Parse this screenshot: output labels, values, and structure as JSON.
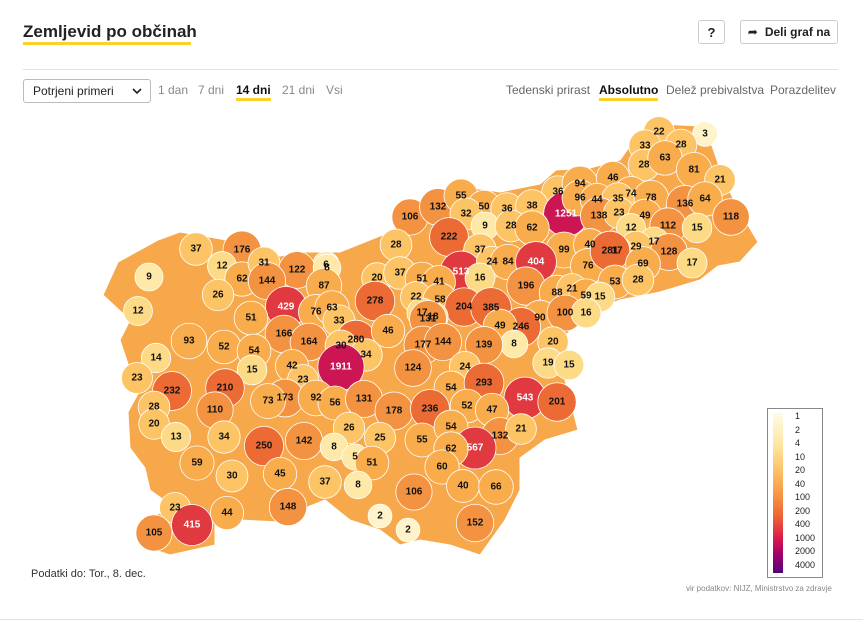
{
  "header": {
    "title": "Zemljevid po občinah",
    "help_label": "?",
    "share_label": "Deli graf na"
  },
  "controls": {
    "measure_select": "Potrjeni primeri",
    "ranges": [
      "1 dan",
      "7 dni",
      "14 dni",
      "21 dni",
      "Vsi"
    ],
    "active_range": "14 dni",
    "modes": [
      "Tedenski prirast",
      "Absolutno",
      "Delež prebivalstva",
      "Porazdelitev"
    ],
    "active_mode": "Absolutno"
  },
  "legend": {
    "stops": [
      "1",
      "2",
      "4",
      "10",
      "20",
      "40",
      "100",
      "200",
      "400",
      "1000",
      "2000",
      "4000"
    ]
  },
  "map": {
    "municipality_values": [
      22,
      3,
      33,
      28,
      28,
      63,
      81,
      21,
      36,
      94,
      46,
      74,
      78,
      136,
      64,
      118,
      106,
      132,
      55,
      50,
      36,
      38,
      1251,
      96,
      44,
      35,
      138,
      23,
      49,
      32,
      9,
      28,
      62,
      12,
      222,
      37,
      99,
      40,
      112,
      17,
      15,
      29,
      17,
      128,
      37,
      176,
      28,
      6,
      513,
      24,
      84,
      404,
      76,
      281,
      69,
      17,
      12,
      62,
      31,
      122,
      8,
      20,
      37,
      51,
      41,
      16,
      196,
      88,
      21,
      59,
      53,
      28,
      9,
      144,
      87,
      278,
      22,
      58,
      204,
      385,
      15,
      26,
      429,
      76,
      63,
      17,
      18,
      90,
      100,
      16,
      12,
      51,
      33,
      246,
      166,
      164,
      280,
      46,
      131,
      49,
      8,
      93,
      52,
      54,
      30,
      34,
      177,
      144,
      139,
      20,
      14,
      42,
      1911,
      124,
      24,
      19,
      15,
      23,
      15,
      23,
      54,
      293,
      543,
      201,
      232,
      210,
      173,
      92,
      56,
      131,
      178,
      236,
      52,
      47,
      28,
      73,
      110,
      20,
      13,
      34,
      26,
      25,
      55,
      54,
      132,
      21,
      250,
      142,
      8,
      5,
      567,
      62,
      59,
      51,
      60,
      30,
      45,
      37,
      8,
      106,
      40,
      66,
      148,
      2,
      2,
      152,
      23,
      44,
      415,
      105
    ],
    "lines_note": ""
  },
  "footer": {
    "data_date": "Podatki do: Tor., 8. dec.",
    "source": "vir podatkov: NIJZ, Ministrstvo za zdravje"
  }
}
